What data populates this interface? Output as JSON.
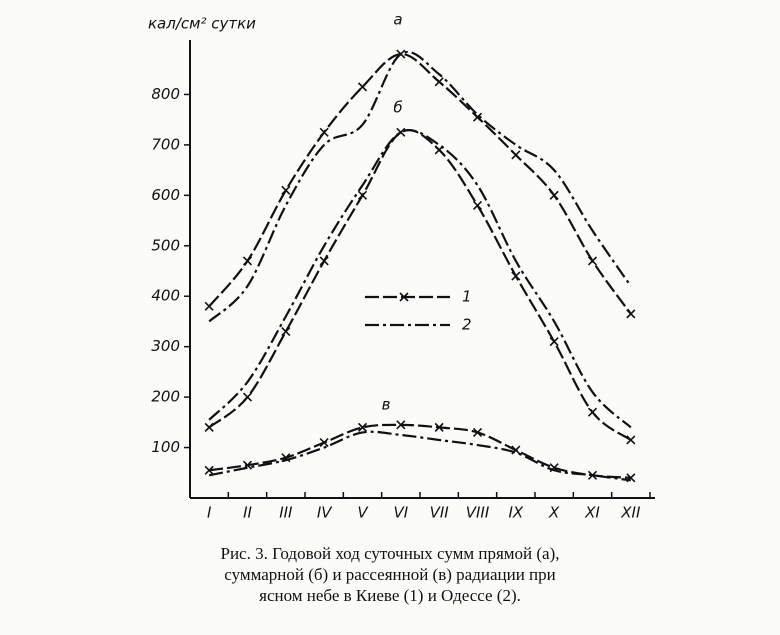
{
  "chart_data": {
    "type": "line",
    "y_label": "кал/см² сутки",
    "categories": [
      "I",
      "II",
      "III",
      "IV",
      "V",
      "VI",
      "VII",
      "VIII",
      "IX",
      "X",
      "XI",
      "XII"
    ],
    "ylim": [
      0,
      900
    ],
    "yticks": [
      100,
      200,
      300,
      400,
      500,
      600,
      700,
      800
    ],
    "curve_labels": [
      "а",
      "б",
      "в"
    ],
    "series": [
      {
        "name": "1",
        "color": "#111111",
        "dash": "14 4",
        "marker": "x",
        "curves": [
          [
            380,
            470,
            610,
            725,
            815,
            880,
            825,
            755,
            680,
            600,
            470,
            365
          ],
          [
            140,
            200,
            330,
            470,
            600,
            725,
            690,
            580,
            440,
            310,
            170,
            115
          ],
          [
            55,
            65,
            80,
            110,
            140,
            145,
            140,
            130,
            95,
            60,
            45,
            40
          ]
        ]
      },
      {
        "name": "2",
        "color": "#111111",
        "dash": "14 4 3 4",
        "marker": "none",
        "curves": [
          [
            350,
            420,
            580,
            700,
            740,
            880,
            840,
            760,
            700,
            650,
            530,
            420
          ],
          [
            155,
            230,
            360,
            500,
            620,
            725,
            700,
            620,
            470,
            350,
            210,
            140
          ],
          [
            45,
            60,
            75,
            100,
            130,
            125,
            115,
            105,
            90,
            55,
            45,
            35
          ]
        ]
      }
    ],
    "caption": [
      "Рис. 3. Годовой ход суточных сумм прямой (а),",
      "суммарной (б) и рассеянной (в) радиации при",
      "ясном небе в Киеве (1) и Одессе (2)."
    ]
  }
}
